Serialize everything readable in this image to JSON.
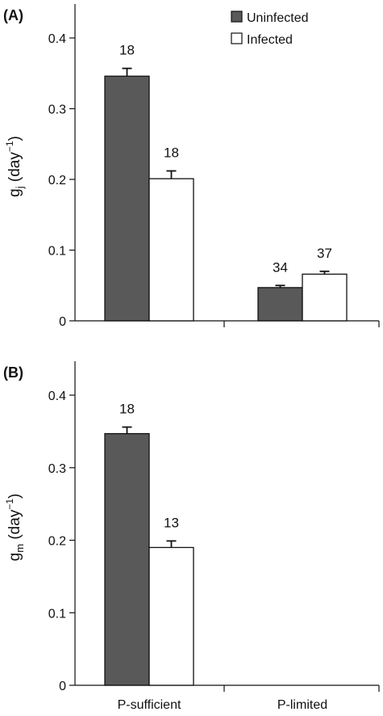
{
  "chart_data": [
    {
      "panel": "(A)",
      "type": "bar",
      "ylabel": {
        "main": "g",
        "sub": "j",
        "unit_open": " (day",
        "sup": "−1",
        "unit_close": ")"
      },
      "categories": [
        "P-sufficient",
        "P-limited"
      ],
      "series": [
        {
          "name": "Uninfected",
          "values": [
            0.346,
            0.047
          ],
          "errors": [
            0.011,
            0.003
          ],
          "n": [
            "18",
            "34"
          ]
        },
        {
          "name": "Infected",
          "values": [
            0.201,
            0.066
          ],
          "errors": [
            0.011,
            0.004
          ],
          "n": [
            "18",
            "37"
          ]
        }
      ],
      "ylim": [
        0,
        0.4
      ],
      "yticks": [
        "0",
        "0.1",
        "0.2",
        "0.3",
        "0.4"
      ],
      "legend": "top-right"
    },
    {
      "panel": "(B)",
      "type": "bar",
      "ylabel": {
        "main": "g",
        "sub": "m",
        "unit_open": " (day",
        "sup": "−1",
        "unit_close": ")"
      },
      "categories": [
        "P-sufficient",
        "P-limited"
      ],
      "series": [
        {
          "name": "Uninfected",
          "values": [
            0.347,
            null
          ],
          "errors": [
            0.009,
            null
          ],
          "n": [
            "18",
            null
          ]
        },
        {
          "name": "Infected",
          "values": [
            0.19,
            null
          ],
          "errors": [
            0.009,
            null
          ],
          "n": [
            "13",
            null
          ]
        }
      ],
      "ylim": [
        0,
        0.4
      ],
      "yticks": [
        "0",
        "0.1",
        "0.2",
        "0.3",
        "0.4"
      ]
    }
  ],
  "colors": {
    "uninfected": "#595959",
    "infected": "#ffffff",
    "axis": "#111111"
  }
}
